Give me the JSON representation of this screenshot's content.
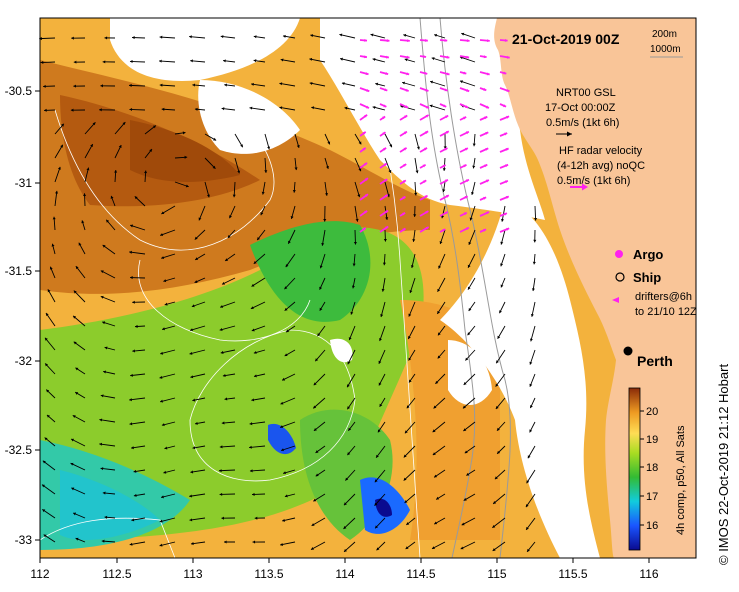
{
  "map": {
    "title": "21-Oct-2019 00Z",
    "contour_legend": [
      "200m",
      "1000m"
    ],
    "model_label": [
      "NRT00 GSL",
      "17-Oct 00:00Z",
      "0.5m/s (1kt 6h)"
    ],
    "radar_label": [
      "HF radar velocity",
      "(4-12h avg) noQC",
      "0.5m/s (1kt 6h)"
    ],
    "legend_items": [
      {
        "symbol": "argo",
        "label": "Argo"
      },
      {
        "symbol": "ship",
        "label": "Ship"
      },
      {
        "symbol": "drifter",
        "label": "drifters@6h"
      },
      {
        "symbol": "none",
        "label": "to 21/10 12Z"
      }
    ],
    "city": "Perth",
    "x_ticks": [
      "112",
      "112.5",
      "113",
      "113.5",
      "114",
      "114.5",
      "115",
      "115.5",
      "116"
    ],
    "y_ticks": [
      "-30.5",
      "-31",
      "-31.5",
      "-32",
      "-32.5",
      "-33"
    ],
    "colorbar": {
      "ticks": [
        "20",
        "19",
        "18",
        "17",
        "16"
      ],
      "label": "4h comp, p50, All Sats"
    },
    "credit": "© IMOS 22-Oct-2019 21:12 Hobart",
    "colors": {
      "land": "#f9c598",
      "model_arrow": "#000000",
      "radar_arrow": "#ff22ee",
      "contour": "#ffffff"
    }
  }
}
